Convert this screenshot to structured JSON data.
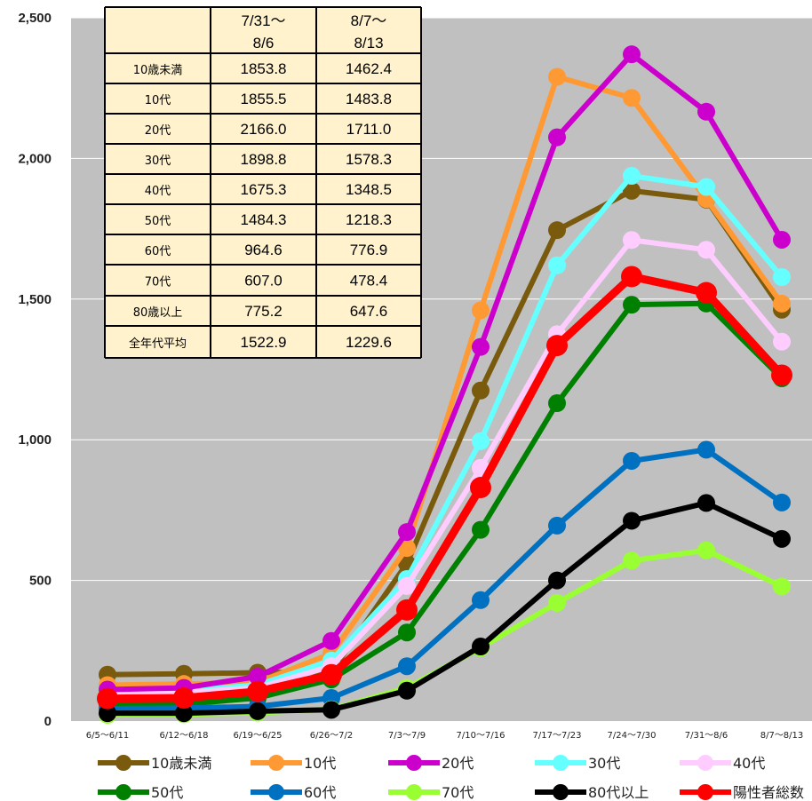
{
  "chart_data": {
    "type": "line",
    "categories": [
      "6/5～6/11",
      "6/12～6/18",
      "6/19～6/25",
      "6/26～7/2",
      "7/3～7/9",
      "7/10～7/16",
      "7/17～7/23",
      "7/24～7/30",
      "7/31～8/6",
      "8/7～8/13"
    ],
    "ylim": [
      0,
      2500
    ],
    "yticks": [
      "0",
      "500",
      "1,000",
      "1,500",
      "2,000",
      "2,500"
    ],
    "grid": true,
    "legend_position": "bottom",
    "series": [
      {
        "name": "10歳未満",
        "color": "#7a5a0c",
        "values": [
          165,
          168,
          172,
          175,
          560,
          1175,
          1745,
          1885,
          1853.8,
          1462.4
        ]
      },
      {
        "name": "10代",
        "color": "#ff9933",
        "values": [
          128,
          132,
          138,
          240,
          615,
          1460,
          2290,
          2215,
          1855.5,
          1483.8
        ]
      },
      {
        "name": "20代",
        "color": "#cc00cc",
        "values": [
          112,
          118,
          158,
          285,
          672,
          1330,
          2075,
          2370,
          2166.0,
          1711.0
        ]
      },
      {
        "name": "30代",
        "color": "#66ffff",
        "values": [
          105,
          108,
          128,
          215,
          505,
          995,
          1620,
          1938,
          1898.8,
          1578.3
        ]
      },
      {
        "name": "40代",
        "color": "#ffccff",
        "values": [
          98,
          102,
          118,
          195,
          480,
          900,
          1375,
          1710,
          1675.3,
          1348.5
        ]
      },
      {
        "name": "50代",
        "color": "#008000",
        "values": [
          58,
          60,
          82,
          148,
          315,
          680,
          1130,
          1480,
          1484.3,
          1218.3
        ]
      },
      {
        "name": "60代",
        "color": "#0070c0",
        "values": [
          44,
          46,
          52,
          82,
          195,
          430,
          695,
          925,
          964.6,
          776.9
        ]
      },
      {
        "name": "70代",
        "color": "#99ff33",
        "values": [
          22,
          24,
          30,
          42,
          118,
          260,
          420,
          570,
          607.0,
          478.4
        ]
      },
      {
        "name": "80代以上",
        "color": "#000000",
        "values": [
          28,
          28,
          35,
          40,
          108,
          265,
          500,
          712,
          775.2,
          647.6
        ]
      },
      {
        "name": "陽性者総数",
        "color": "#ff0000",
        "values": [
          80,
          82,
          105,
          165,
          395,
          830,
          1335,
          1580,
          1522.9,
          1229.6
        ]
      }
    ]
  },
  "table": {
    "headers": [
      "",
      "7/31～\n8/6",
      "8/7～\n8/13"
    ],
    "header_lines": [
      [
        "7/31～",
        "8/6"
      ],
      [
        "8/7～",
        "8/13"
      ]
    ],
    "rows": [
      [
        "10歳未満",
        "1853.8",
        "1462.4"
      ],
      [
        "10代",
        "1855.5",
        "1483.8"
      ],
      [
        "20代",
        "2166.0",
        "1711.0"
      ],
      [
        "30代",
        "1898.8",
        "1578.3"
      ],
      [
        "40代",
        "1675.3",
        "1348.5"
      ],
      [
        "50代",
        "1484.3",
        "1218.3"
      ],
      [
        "60代",
        "964.6",
        "776.9"
      ],
      [
        "70代",
        "607.0",
        "478.4"
      ],
      [
        "80歳以上",
        "775.2",
        "647.6"
      ],
      [
        "全年代平均",
        "1522.9",
        "1229.6"
      ]
    ]
  },
  "colors": {
    "plot_background": "#c0c0c0",
    "gridline": "#ffffff",
    "table_background": "#fff2cc"
  }
}
